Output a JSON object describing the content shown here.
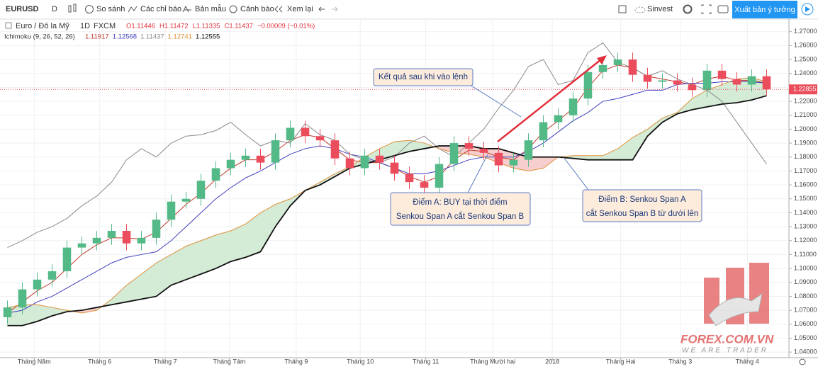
{
  "toolbar": {
    "symbol": "EURUSD",
    "interval": "D",
    "compare": "So sánh",
    "indicators": "Các chỉ báo",
    "templates": "Bản mẫu",
    "alerts": "Cảnh báo",
    "replay": "Xem lại",
    "account": "Sinvest",
    "publish": "Xuất bản ý tưởng"
  },
  "legend": {
    "title": "Euro / Đô la Mỹ",
    "interval": "1D",
    "source": "FXCM",
    "ohlc": [
      "O1.11446",
      "H1.11472",
      "L1.11335",
      "C1.11437",
      "−0.00009 (−0.01%)"
    ],
    "indicator": "Ichimoku (9, 26, 52, 26)",
    "indicator_values": [
      "1.11917",
      "1.12568",
      "1.11437",
      "1.12741",
      "1.12555"
    ]
  },
  "chart_data": {
    "type": "candlestick",
    "open": [
      1.065,
      1.072,
      1.085,
      1.092,
      1.098,
      1.115,
      1.118,
      1.122,
      1.127,
      1.118,
      1.122,
      1.135,
      1.148,
      1.15,
      1.163,
      1.172,
      1.178,
      1.181,
      1.176,
      1.192,
      1.201,
      1.195,
      1.192,
      1.179,
      1.172,
      1.181,
      1.176,
      1.168,
      1.162,
      1.158,
      1.175,
      1.19,
      1.186,
      1.183,
      1.174,
      1.178,
      1.192,
      1.205,
      1.21,
      1.222,
      1.241,
      1.246,
      1.25,
      1.239,
      1.234,
      1.235,
      1.232,
      1.228,
      1.242,
      1.236,
      1.232,
      1.238
    ],
    "high": [
      1.077,
      1.09,
      1.097,
      1.103,
      1.12,
      1.123,
      1.127,
      1.132,
      1.132,
      1.127,
      1.14,
      1.153,
      1.155,
      1.168,
      1.177,
      1.183,
      1.186,
      1.186,
      1.197,
      1.206,
      1.206,
      1.2,
      1.197,
      1.184,
      1.186,
      1.186,
      1.181,
      1.173,
      1.167,
      1.18,
      1.195,
      1.195,
      1.191,
      1.188,
      1.183,
      1.197,
      1.21,
      1.215,
      1.227,
      1.246,
      1.251,
      1.255,
      1.255,
      1.244,
      1.24,
      1.24,
      1.237,
      1.247,
      1.247,
      1.241,
      1.243,
      1.243
    ],
    "low": [
      1.06,
      1.067,
      1.08,
      1.087,
      1.093,
      1.11,
      1.113,
      1.117,
      1.113,
      1.113,
      1.117,
      1.13,
      1.143,
      1.145,
      1.158,
      1.167,
      1.173,
      1.171,
      1.171,
      1.187,
      1.19,
      1.187,
      1.174,
      1.167,
      1.167,
      1.171,
      1.163,
      1.157,
      1.153,
      1.153,
      1.17,
      1.181,
      1.178,
      1.169,
      1.169,
      1.173,
      1.187,
      1.2,
      1.205,
      1.217,
      1.236,
      1.241,
      1.234,
      1.229,
      1.229,
      1.227,
      1.223,
      1.223,
      1.231,
      1.227,
      1.227,
      1.224
    ],
    "close": [
      1.072,
      1.085,
      1.092,
      1.098,
      1.115,
      1.118,
      1.122,
      1.127,
      1.118,
      1.122,
      1.135,
      1.148,
      1.15,
      1.163,
      1.172,
      1.178,
      1.181,
      1.176,
      1.192,
      1.201,
      1.195,
      1.192,
      1.179,
      1.172,
      1.181,
      1.176,
      1.168,
      1.162,
      1.158,
      1.175,
      1.19,
      1.186,
      1.183,
      1.174,
      1.178,
      1.192,
      1.205,
      1.21,
      1.222,
      1.241,
      1.246,
      1.25,
      1.239,
      1.234,
      1.235,
      1.232,
      1.228,
      1.242,
      1.236,
      1.232,
      1.238,
      1.22855
    ],
    "up_color": "#53b987",
    "down_color": "#eb4d5c",
    "ichimoku": {
      "cloud_colors": [
        "#cde8cf",
        "#f6c6c6"
      ],
      "lines": [
        {
          "color": "#c0392b",
          "values": [
            1.068,
            1.076,
            1.084,
            1.09,
            1.1,
            1.11,
            1.117,
            1.122,
            1.122,
            1.121,
            1.126,
            1.136,
            1.146,
            1.154,
            1.164,
            1.172,
            1.178,
            1.178,
            1.184,
            1.192,
            1.196,
            1.194,
            1.186,
            1.178,
            1.176,
            1.176,
            1.172,
            1.166,
            1.162,
            1.166,
            1.178,
            1.185,
            1.184,
            1.18,
            1.178,
            1.186,
            1.198,
            1.206,
            1.215,
            1.23,
            1.242,
            1.246,
            1.244,
            1.238,
            1.236,
            1.234,
            1.232,
            1.236,
            1.238,
            1.235,
            1.235,
            1.233
          ]
        },
        {
          "color": "#3f3fbf",
          "values": [
            1.068,
            1.07,
            1.076,
            1.08,
            1.086,
            1.092,
            1.098,
            1.104,
            1.108,
            1.11,
            1.112,
            1.12,
            1.13,
            1.14,
            1.15,
            1.158,
            1.165,
            1.17,
            1.176,
            1.182,
            1.186,
            1.188,
            1.186,
            1.182,
            1.18,
            1.176,
            1.172,
            1.168,
            1.168,
            1.17,
            1.174,
            1.178,
            1.18,
            1.18,
            1.18,
            1.184,
            1.19,
            1.198,
            1.206,
            1.212,
            1.22,
            1.222,
            1.225,
            1.228,
            1.228,
            1.232,
            1.233,
            1.233,
            1.234,
            1.234,
            1.234,
            1.233
          ]
        },
        {
          "color": "#8a8a8a",
          "values": [
            1.115,
            1.12,
            1.126,
            1.13,
            1.136,
            1.145,
            1.152,
            1.162,
            1.178,
            1.186,
            1.18,
            1.19,
            1.195,
            1.196,
            1.199,
            1.205,
            1.196,
            1.188,
            1.192,
            1.19,
            1.204,
            1.196,
            1.192,
            1.182,
            1.178,
            1.176,
            1.18,
            1.19,
            1.195,
            1.186,
            1.18,
            1.19,
            1.2,
            1.215,
            1.228,
            1.245,
            1.25,
            1.232,
            1.235,
            1.255,
            1.262,
            1.248,
            1.244,
            1.238,
            1.242,
            1.236,
            1.232,
            1.228,
            1.22,
            1.205,
            1.19,
            1.175
          ]
        },
        {
          "color": "#e0913a",
          "values": [
            1.072,
            1.074,
            1.074,
            1.072,
            1.07,
            1.068,
            1.07,
            1.078,
            1.088,
            1.096,
            1.104,
            1.11,
            1.116,
            1.12,
            1.124,
            1.127,
            1.132,
            1.14,
            1.146,
            1.15,
            1.156,
            1.162,
            1.168,
            1.173,
            1.18,
            1.186,
            1.191,
            1.192,
            1.19,
            1.186,
            1.183,
            1.182,
            1.18,
            1.176,
            1.172,
            1.17,
            1.172,
            1.18,
            1.181,
            1.181,
            1.181,
            1.186,
            1.194,
            1.2,
            1.208,
            1.212,
            1.222,
            1.228,
            1.232,
            1.236,
            1.237,
            1.234
          ]
        },
        {
          "color": "#111111",
          "values": [
            1.059,
            1.059,
            1.062,
            1.066,
            1.069,
            1.07,
            1.072,
            1.074,
            1.076,
            1.078,
            1.08,
            1.088,
            1.092,
            1.096,
            1.1,
            1.105,
            1.108,
            1.112,
            1.13,
            1.145,
            1.156,
            1.16,
            1.166,
            1.172,
            1.175,
            1.178,
            1.181,
            1.184,
            1.186,
            1.188,
            1.188,
            1.188,
            1.186,
            1.186,
            1.183,
            1.18,
            1.18,
            1.18,
            1.179,
            1.178,
            1.178,
            1.178,
            1.178,
            1.195,
            1.205,
            1.211,
            1.214,
            1.216,
            1.218,
            1.219,
            1.221,
            1.224
          ]
        }
      ]
    },
    "xlim": [
      -0.5,
      52.5
    ],
    "xticks": [
      {
        "value": 1.8,
        "label": "Tháng Năm"
      },
      {
        "value": 6.2,
        "label": "Tháng 6"
      },
      {
        "value": 10.6,
        "label": "Tháng 7"
      },
      {
        "value": 14.9,
        "label": "Tháng Tám"
      },
      {
        "value": 19.4,
        "label": "Tháng 9"
      },
      {
        "value": 23.7,
        "label": "Tháng 10"
      },
      {
        "value": 28.1,
        "label": "Tháng 11"
      },
      {
        "value": 32.6,
        "label": "Tháng Mười hai"
      },
      {
        "value": 36.6,
        "label": "2018"
      },
      {
        "value": 41.2,
        "label": "Tháng Hai"
      },
      {
        "value": 45.2,
        "label": "Tháng 3"
      },
      {
        "value": 49.7,
        "label": "Tháng 4"
      }
    ],
    "ylim": [
      1.036,
      1.279
    ],
    "yticks": [
      {
        "value": 1.04,
        "label": "1.04000"
      },
      {
        "value": 1.05,
        "label": "1.05000"
      },
      {
        "value": 1.06,
        "label": "1.06000"
      },
      {
        "value": 1.07,
        "label": "1.07000"
      },
      {
        "value": 1.08,
        "label": "1.08000"
      },
      {
        "value": 1.09,
        "label": "1.09000"
      },
      {
        "value": 1.1,
        "label": "1.10000"
      },
      {
        "value": 1.11,
        "label": "1.11000"
      },
      {
        "value": 1.12,
        "label": "1.12000"
      },
      {
        "value": 1.13,
        "label": "1.13000"
      },
      {
        "value": 1.14,
        "label": "1.14000"
      },
      {
        "value": 1.15,
        "label": "1.15000"
      },
      {
        "value": 1.16,
        "label": "1.16000"
      },
      {
        "value": 1.17,
        "label": "1.17000"
      },
      {
        "value": 1.18,
        "label": "1.18000"
      },
      {
        "value": 1.19,
        "label": "1.19000"
      },
      {
        "value": 1.2,
        "label": "1.20000"
      },
      {
        "value": 1.21,
        "label": "1.21000"
      },
      {
        "value": 1.22,
        "label": "1.22000"
      },
      {
        "value": 1.23,
        "label": "1.23000"
      },
      {
        "value": 1.24,
        "label": "1.24000"
      },
      {
        "value": 1.25,
        "label": "1.25000"
      },
      {
        "value": 1.26,
        "label": "1.26000"
      },
      {
        "value": 1.27,
        "label": "1.27000"
      }
    ],
    "grid": true
  },
  "annotations": [
    {
      "lines": [
        "Kết quả sau khi vào lệnh"
      ]
    },
    {
      "lines": [
        "Điểm A: BUY tại thời điểm",
        "Senkou Span A cắt Senkou Span B"
      ]
    },
    {
      "lines": [
        "Điểm B: Senkou Span A",
        "cắt Senkou Span B từ dưới lên"
      ]
    }
  ],
  "watermark": {
    "brand": "FOREX.COM.VN",
    "slogan": "WE ARE TRADER"
  }
}
